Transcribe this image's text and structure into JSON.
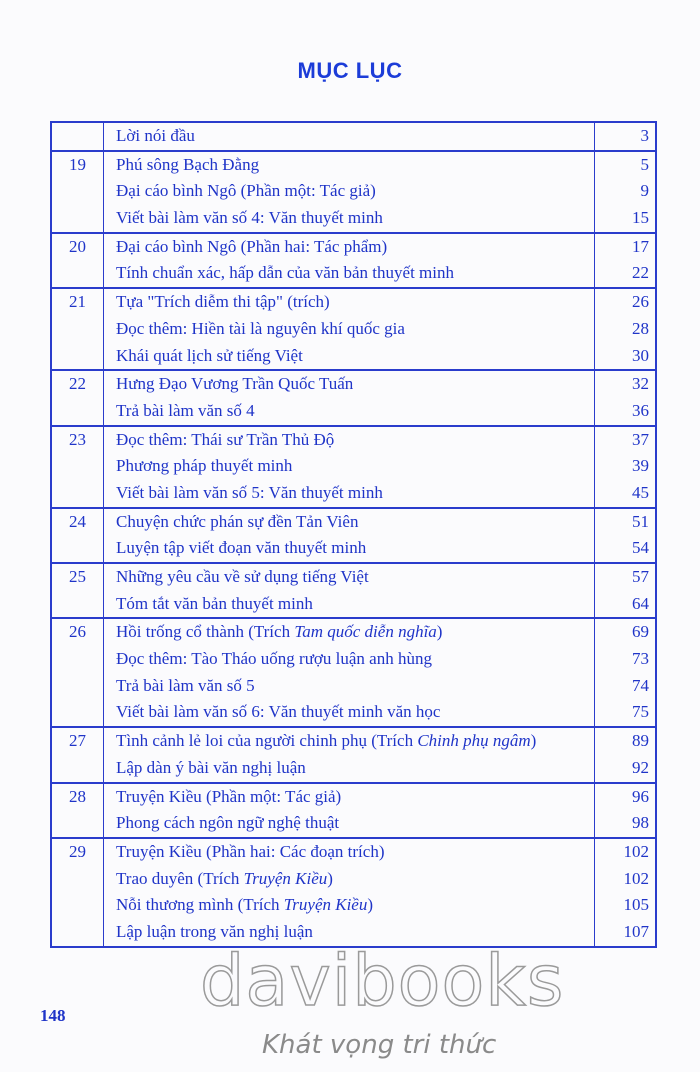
{
  "title": "MỤC LỤC",
  "groups": [
    {
      "num": "",
      "items": [
        {
          "text": "Lời nói đầu",
          "page": "3"
        }
      ]
    },
    {
      "num": "19",
      "items": [
        {
          "text": "Phú sông Bạch Đằng",
          "page": "5"
        },
        {
          "text": "Đại cáo bình Ngô (Phần một: Tác giả)",
          "page": "9"
        },
        {
          "text": "Viết bài làm văn số 4: Văn thuyết minh",
          "page": "15"
        }
      ]
    },
    {
      "num": "20",
      "items": [
        {
          "text": "Đại cáo bình Ngô (Phần hai: Tác phẩm)",
          "page": "17"
        },
        {
          "text": "Tính chuẩn xác, hấp dẫn của văn bản thuyết minh",
          "page": "22"
        }
      ]
    },
    {
      "num": "21",
      "items": [
        {
          "text": "Tựa \"Trích diễm thi tập\" (trích)",
          "page": "26"
        },
        {
          "text": "Đọc thêm: Hiền tài là nguyên khí quốc gia",
          "page": "28"
        },
        {
          "text": "Khái quát lịch sử tiếng Việt",
          "page": "30"
        }
      ]
    },
    {
      "num": "22",
      "items": [
        {
          "text": "Hưng Đạo Vương Trần Quốc Tuấn",
          "page": "32"
        },
        {
          "text": "Trả bài làm văn số 4",
          "page": "36"
        }
      ]
    },
    {
      "num": "23",
      "items": [
        {
          "text": "Đọc thêm: Thái sư Trần Thủ Độ",
          "page": "37"
        },
        {
          "text": "Phương pháp thuyết minh",
          "page": "39"
        },
        {
          "text": "Viết bài làm văn số 5: Văn thuyết minh",
          "page": "45"
        }
      ]
    },
    {
      "num": "24",
      "items": [
        {
          "text": "Chuyện chức phán sự đền Tản Viên",
          "page": "51"
        },
        {
          "text": "Luyện tập viết đoạn văn thuyết minh",
          "page": "54"
        }
      ]
    },
    {
      "num": "25",
      "items": [
        {
          "text": "Những yêu cầu về sử dụng tiếng Việt",
          "page": "57"
        },
        {
          "text": "Tóm tắt văn bản thuyết minh",
          "page": "64"
        }
      ]
    },
    {
      "num": "26",
      "items": [
        {
          "text": "Hồi trống cổ thành (Trích ",
          "italic": "Tam quốc diễn nghĩa",
          "after": ")",
          "page": "69"
        },
        {
          "text": "Đọc thêm: Tào Tháo uống rượu luận anh hùng",
          "page": "73"
        },
        {
          "text": "Trả bài làm văn số 5",
          "page": "74"
        },
        {
          "text": "Viết bài làm văn số 6: Văn thuyết minh văn học",
          "page": "75"
        }
      ]
    },
    {
      "num": "27",
      "items": [
        {
          "text": "Tình cảnh lẻ loi của người chinh phụ (Trích ",
          "italic": "Chinh phụ ngâm",
          "after": ")",
          "page": "89"
        },
        {
          "text": "Lập dàn ý bài văn nghị luận",
          "page": "92"
        }
      ]
    },
    {
      "num": "28",
      "items": [
        {
          "text": "Truyện Kiều (Phần một: Tác giả)",
          "page": "96"
        },
        {
          "text": "Phong cách ngôn ngữ nghệ thuật",
          "page": "98"
        }
      ]
    },
    {
      "num": "29",
      "items": [
        {
          "text": "Truyện Kiều (Phần hai: Các đoạn trích)",
          "page": "102"
        },
        {
          "text": "Trao duyên (Trích ",
          "italic": "Truyện Kiều",
          "after": ")",
          "page": "102"
        },
        {
          "text": "Nỗi thương mình (Trích ",
          "italic": "Truyện Kiều",
          "after": ")",
          "page": "105"
        },
        {
          "text": "Lập luận trong văn nghị luận",
          "page": "107"
        }
      ]
    }
  ],
  "page_number": "148",
  "watermark": {
    "brand": "davibooks",
    "slogan": "Khát vọng tri thức"
  }
}
